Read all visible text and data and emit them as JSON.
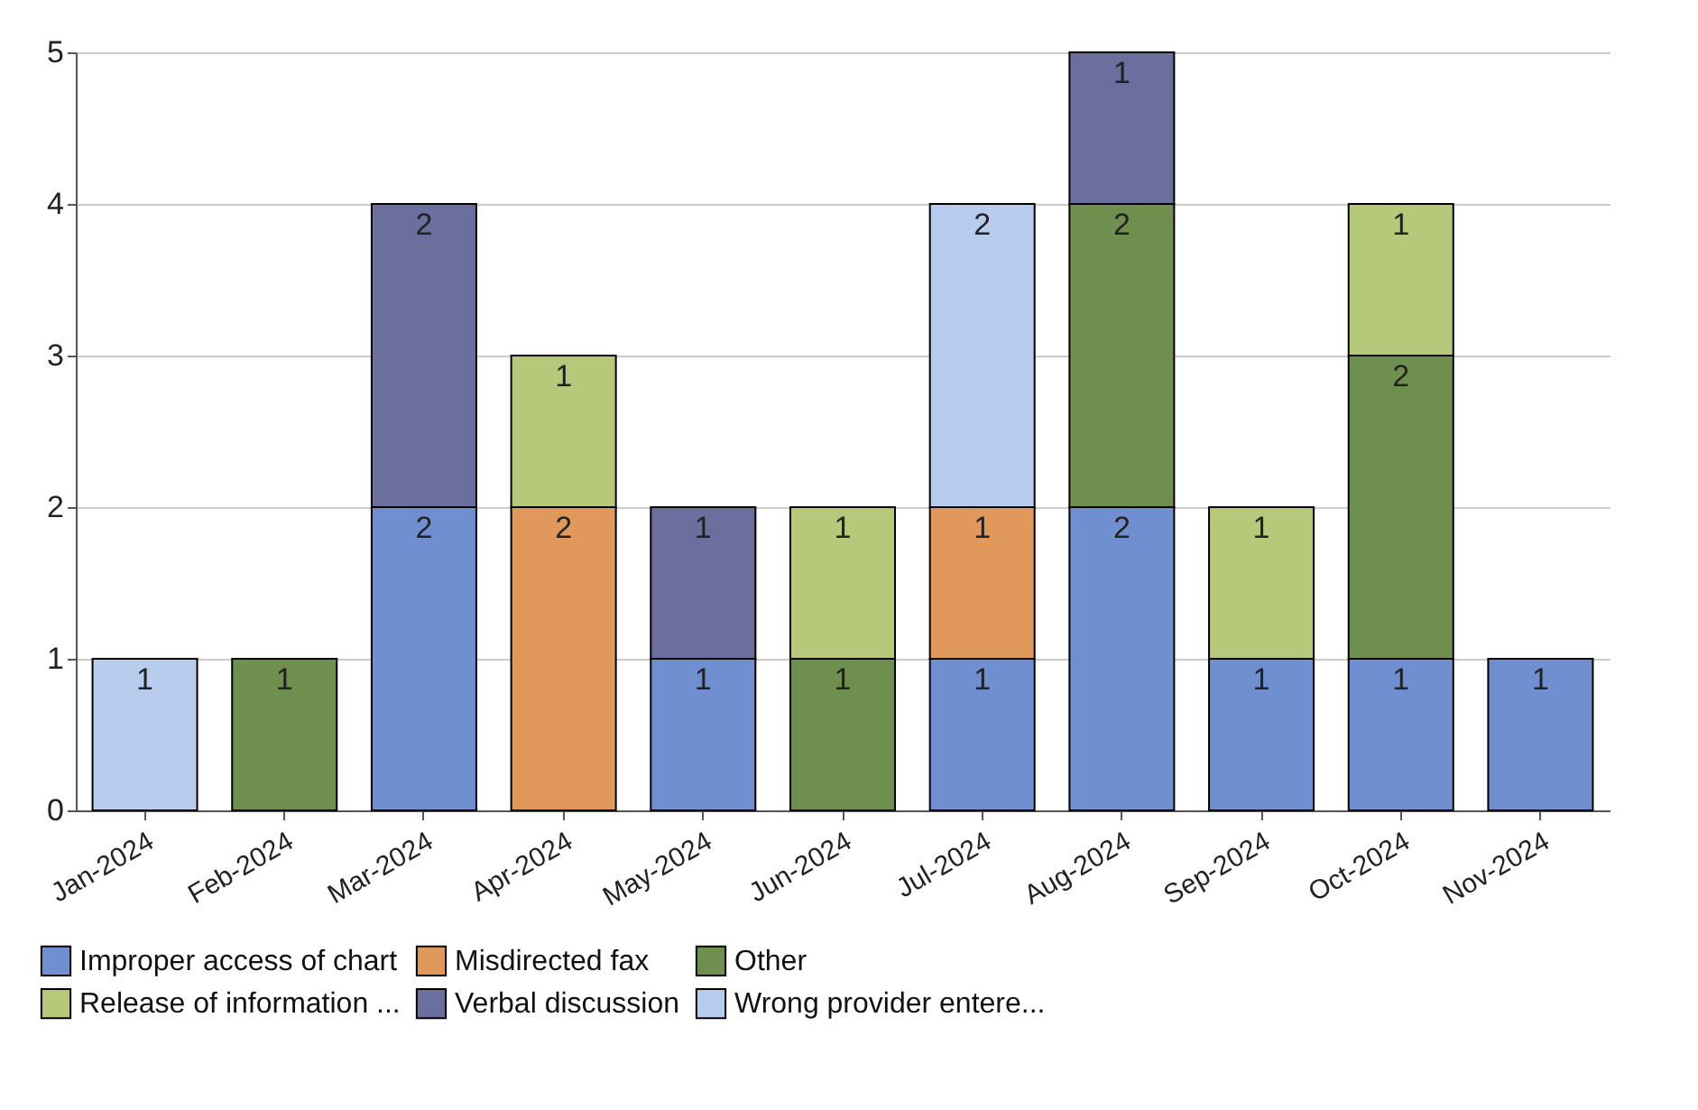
{
  "chart_data": {
    "type": "bar",
    "stacked": true,
    "categories": [
      "Jan-2024",
      "Feb-2024",
      "Mar-2024",
      "Apr-2024",
      "May-2024",
      "Jun-2024",
      "Jul-2024",
      "Aug-2024",
      "Sep-2024",
      "Oct-2024",
      "Nov-2024"
    ],
    "series": [
      {
        "name": "Improper access of chart",
        "color": "#6f8fd0",
        "values": [
          null,
          null,
          2,
          null,
          1,
          null,
          1,
          2,
          1,
          1,
          1
        ]
      },
      {
        "name": "Misdirected fax",
        "color": "#e0995a",
        "values": [
          null,
          null,
          null,
          2,
          null,
          null,
          1,
          null,
          null,
          null,
          null
        ]
      },
      {
        "name": "Other",
        "color": "#6e8f4e",
        "values": [
          null,
          1,
          null,
          null,
          null,
          1,
          null,
          2,
          null,
          2,
          null
        ]
      },
      {
        "name": "Release of information ...",
        "color": "#b6c97a",
        "values": [
          null,
          null,
          null,
          1,
          null,
          1,
          null,
          null,
          1,
          1,
          null
        ]
      },
      {
        "name": "Verbal discussion",
        "color": "#6a6f9e",
        "values": [
          null,
          null,
          2,
          null,
          1,
          null,
          null,
          1,
          null,
          null,
          null
        ]
      },
      {
        "name": "Wrong provider entere...",
        "color": "#b8cdee",
        "values": [
          1,
          null,
          null,
          null,
          null,
          null,
          2,
          null,
          null,
          null,
          null
        ]
      }
    ],
    "ylim": [
      0,
      5
    ],
    "yticks": [
      0,
      1,
      2,
      3,
      4,
      5
    ],
    "grid": "y",
    "legend": "bottom",
    "data_labels": true
  }
}
